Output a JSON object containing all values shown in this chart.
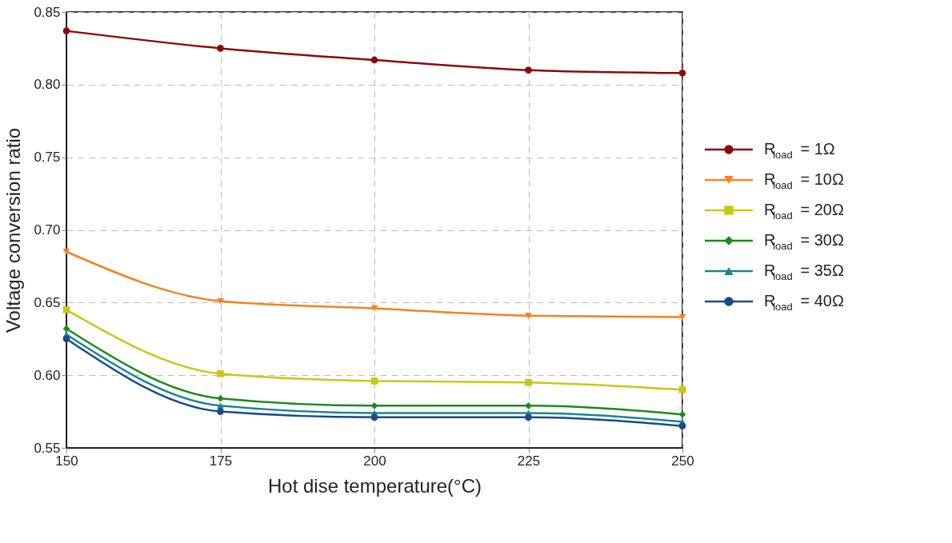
{
  "chart_data": {
    "type": "line",
    "xlabel": "Hot dise temperature(°C)",
    "ylabel": "Voltage conversion ratio",
    "x": [
      150,
      175,
      200,
      225,
      250
    ],
    "xlim": [
      150,
      250
    ],
    "xticks": [
      150,
      175,
      200,
      225,
      250
    ],
    "ylim": [
      0.55,
      0.85
    ],
    "yticks": [
      0.55,
      {
        "value": 0.6,
        "label": "0.60"
      },
      0.65,
      {
        "value": 0.7,
        "label": "0.70"
      },
      0.75,
      {
        "value": 0.8,
        "label": "0.80"
      },
      0.85
    ],
    "grid": true,
    "legend": "right",
    "series": [
      {
        "name": "R$_{load}$ = 1Ω",
        "color": "#8b0a0a",
        "marker": "circle",
        "values": [
          0.837,
          0.825,
          0.817,
          0.81,
          0.808
        ]
      },
      {
        "name": "R$_{load}$ = 10Ω",
        "color": "#f5821f",
        "marker": "triangle-down",
        "values": [
          0.685,
          0.651,
          0.646,
          0.641,
          0.64
        ]
      },
      {
        "name": "R$_{load}$ = 20Ω",
        "color": "#c8c814",
        "marker": "square",
        "values": [
          0.645,
          0.601,
          0.596,
          0.595,
          0.59
        ]
      },
      {
        "name": "R$_{load}$ = 30Ω",
        "color": "#1a8a1a",
        "marker": "diamond",
        "values": [
          0.632,
          0.584,
          0.579,
          0.579,
          0.573
        ]
      },
      {
        "name": "R$_{load}$ = 35Ω",
        "color": "#17878a",
        "marker": "triangle",
        "values": [
          0.628,
          0.579,
          0.574,
          0.574,
          0.568
        ]
      },
      {
        "name": "R$_{load}$ = 40Ω",
        "color": "#1a4a8c",
        "marker": "circle",
        "values": [
          0.625,
          0.575,
          0.571,
          0.571,
          0.565
        ]
      }
    ]
  }
}
